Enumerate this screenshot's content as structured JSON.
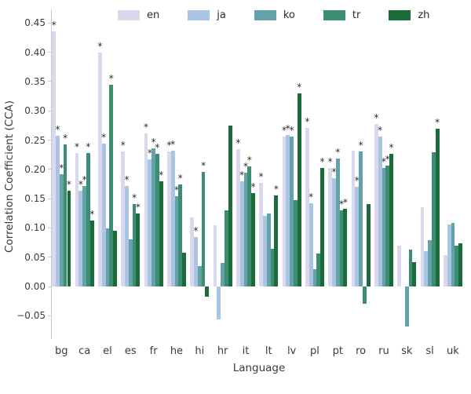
{
  "figure": {
    "background_color": "#ffffff",
    "spine_color": "#c9c9d6",
    "text_color": "#3b3b3b",
    "significance_marker": "*"
  },
  "chart_data": {
    "type": "bar",
    "title": "",
    "xlabel": "Language",
    "ylabel": "Correlation Coefficient (CCA)",
    "grid": false,
    "legend_position": "top",
    "ylim": [
      -0.09,
      0.465
    ],
    "yticks": [
      0.45,
      0.4,
      0.35,
      0.3,
      0.25,
      0.2,
      0.15,
      0.1,
      0.05,
      0.0,
      -0.05
    ],
    "ytick_labels": [
      "0.45",
      "0.40",
      "0.35",
      "0.30",
      "0.25",
      "0.20",
      "0.15",
      "0.10",
      "0.05",
      "0.00",
      "−0.05"
    ],
    "categories": [
      "bg",
      "ca",
      "el",
      "es",
      "fr",
      "he",
      "hi",
      "hr",
      "it",
      "lt",
      "lv",
      "pl",
      "pt",
      "ro",
      "ru",
      "sk",
      "sl",
      "uk"
    ],
    "series": [
      {
        "name": "en",
        "color": "#d9d8ec",
        "values": [
          0.435,
          0.228,
          0.4,
          0.23,
          0.261,
          0.231,
          0.118,
          0.105,
          0.235,
          0.177,
          0.256,
          0.271,
          0.203,
          0.232,
          0.277,
          0.07,
          0.135,
          0.053
        ],
        "significant": [
          1,
          1,
          1,
          1,
          1,
          1,
          0,
          0,
          1,
          1,
          1,
          1,
          1,
          0,
          1,
          0,
          0,
          0
        ]
      },
      {
        "name": "ja",
        "color": "#a9c5e2",
        "values": [
          0.257,
          0.164,
          0.244,
          0.172,
          0.217,
          0.232,
          0.085,
          -0.056,
          0.18,
          0.121,
          0.259,
          0.142,
          0.185,
          0.17,
          0.256,
          0.0,
          0.06,
          0.106
        ],
        "significant": [
          1,
          1,
          1,
          1,
          1,
          1,
          1,
          0,
          1,
          0,
          1,
          1,
          1,
          1,
          1,
          0,
          0,
          0
        ]
      },
      {
        "name": "ko",
        "color": "#64a1a8",
        "values": [
          0.192,
          0.171,
          0.099,
          0.081,
          0.236,
          0.154,
          0.035,
          0.04,
          0.195,
          0.124,
          0.256,
          0.03,
          0.219,
          0.23,
          0.203,
          -0.068,
          0.079,
          0.109
        ],
        "significant": [
          1,
          1,
          0,
          0,
          1,
          1,
          0,
          0,
          1,
          0,
          1,
          0,
          1,
          1,
          1,
          0,
          0,
          0
        ]
      },
      {
        "name": "tr",
        "color": "#3c8d72",
        "values": [
          0.243,
          0.228,
          0.344,
          0.141,
          0.226,
          0.174,
          0.196,
          0.13,
          0.205,
          0.065,
          0.147,
          0.056,
          0.13,
          -0.03,
          0.206,
          0.063,
          0.229,
          0.07
        ],
        "significant": [
          1,
          1,
          1,
          1,
          1,
          1,
          1,
          0,
          1,
          0,
          0,
          0,
          1,
          0,
          1,
          0,
          0,
          0
        ]
      },
      {
        "name": "zh",
        "color": "#1c6b3a",
        "values": [
          0.163,
          0.112,
          0.095,
          0.125,
          0.179,
          0.058,
          -0.018,
          0.275,
          0.16,
          0.155,
          0.33,
          0.202,
          0.133,
          0.141,
          0.226,
          0.042,
          0.27,
          0.074
        ],
        "significant": [
          1,
          1,
          0,
          1,
          1,
          0,
          0,
          0,
          1,
          1,
          1,
          1,
          1,
          0,
          1,
          0,
          1,
          0
        ]
      }
    ]
  }
}
